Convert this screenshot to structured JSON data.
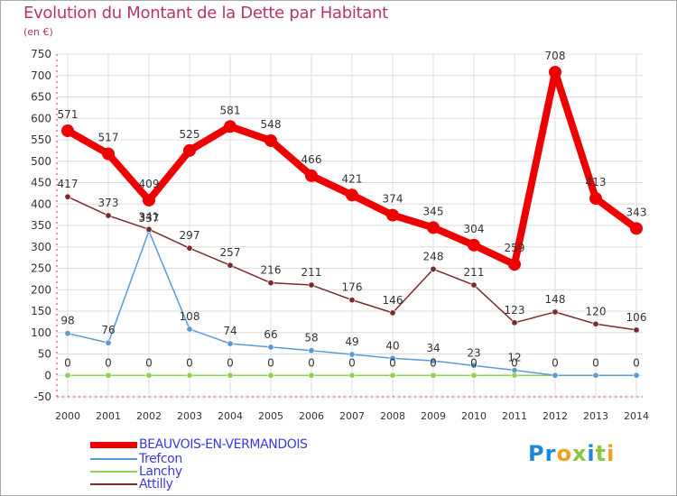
{
  "title": "Evolution du Montant de la Dette par Habitant",
  "unit": "(en €)",
  "brand": "Proxiti",
  "chart_data": {
    "type": "line",
    "x": [
      2000,
      2001,
      2002,
      2003,
      2004,
      2005,
      2006,
      2007,
      2008,
      2009,
      2010,
      2011,
      2012,
      2013,
      2014
    ],
    "ylim": [
      -50,
      750
    ],
    "yticks": [
      -50,
      0,
      50,
      100,
      150,
      200,
      250,
      300,
      350,
      400,
      450,
      500,
      550,
      600,
      650,
      700,
      750
    ],
    "grid": true,
    "legend_position": "bottom-left",
    "series": [
      {
        "name": "BEAUVOIS-EN-VERMANDOIS",
        "color": "#ee0000",
        "values": [
          571,
          517,
          409,
          525,
          581,
          548,
          466,
          421,
          374,
          345,
          304,
          259,
          708,
          413,
          343
        ],
        "labels": [
          "571",
          "517",
          "409",
          "525",
          "581",
          "548",
          "466",
          "421",
          "374",
          "345",
          "304",
          "259",
          "708",
          "413",
          "343"
        ]
      },
      {
        "name": "Trefcon",
        "color": "#5b9bd5",
        "values": [
          98,
          76,
          337,
          108,
          74,
          66,
          58,
          49,
          40,
          34,
          23,
          12,
          0,
          0,
          0
        ],
        "labels": [
          "98",
          "76",
          "337",
          "108",
          "74",
          "66",
          "58",
          "49",
          "40",
          "34",
          "23",
          "12",
          "0",
          "0",
          "0"
        ]
      },
      {
        "name": "Lanchy",
        "color": "#8fd14f",
        "values": [
          0,
          0,
          0,
          0,
          0,
          0,
          0,
          0,
          0,
          0,
          0,
          0,
          0,
          0,
          0
        ],
        "labels": [
          "0",
          "0",
          "0",
          "0",
          "0",
          "0",
          "0",
          "0",
          "0",
          "0",
          "0",
          "0",
          "",
          "",
          ""
        ]
      },
      {
        "name": "Attilly",
        "color": "#7a2b2b",
        "values": [
          417,
          373,
          341,
          297,
          257,
          216,
          211,
          176,
          146,
          248,
          211,
          123,
          148,
          120,
          106
        ],
        "labels": [
          "417",
          "373",
          "341",
          "297",
          "257",
          "216",
          "211",
          "176",
          "146",
          "248",
          "211",
          "123",
          "148",
          "120",
          "106"
        ]
      }
    ]
  }
}
